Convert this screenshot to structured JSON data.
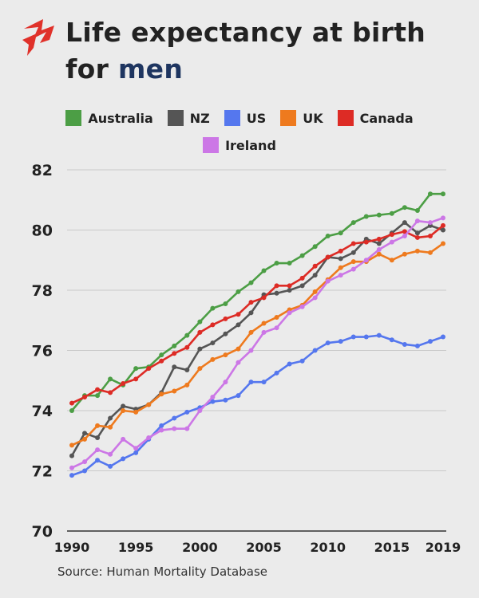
{
  "header": {
    "title_line1": "Life expectancy at birth",
    "title_prefix": "for ",
    "title_highlight": "men"
  },
  "colors": {
    "Australia": "#4c9e45",
    "NZ": "#555555",
    "US": "#5577ee",
    "UK": "#ee7a1e",
    "Canada": "#dd2b25",
    "Ireland": "#cc77e6",
    "title_highlight": "#1e3560",
    "logo": "#e0312a"
  },
  "logo_icon": "sbs-logo-icon",
  "source": "Source: Human Mortality Database",
  "chart_data": {
    "type": "line",
    "title": "Life expectancy at birth for men",
    "xlabel": "",
    "ylabel": "",
    "xlim": [
      1990,
      2019
    ],
    "ylim": [
      70,
      82
    ],
    "x_ticks": [
      1990,
      1995,
      2000,
      2005,
      2010,
      2015,
      2019
    ],
    "y_ticks": [
      70,
      72,
      74,
      76,
      78,
      80,
      82
    ],
    "grid": "horizontal",
    "legend_position": "top",
    "x": [
      1990,
      1991,
      1992,
      1993,
      1994,
      1995,
      1996,
      1997,
      1998,
      1999,
      2000,
      2001,
      2002,
      2003,
      2004,
      2005,
      2006,
      2007,
      2008,
      2009,
      2010,
      2011,
      2012,
      2013,
      2014,
      2015,
      2016,
      2017,
      2018,
      2019
    ],
    "series": [
      {
        "name": "Australia",
        "values": [
          74.0,
          74.5,
          74.5,
          75.05,
          74.85,
          75.4,
          75.45,
          75.85,
          76.15,
          76.5,
          76.95,
          77.4,
          77.55,
          77.95,
          78.25,
          78.65,
          78.9,
          78.9,
          79.15,
          79.45,
          79.8,
          79.9,
          80.25,
          80.45,
          80.5,
          80.55,
          80.75,
          80.65,
          81.2,
          81.2
        ]
      },
      {
        "name": "NZ",
        "values": [
          72.5,
          73.25,
          73.1,
          73.75,
          74.15,
          74.05,
          74.2,
          74.6,
          75.45,
          75.35,
          76.05,
          76.25,
          76.55,
          76.85,
          77.25,
          77.85,
          77.9,
          78.0,
          78.15,
          78.5,
          79.1,
          79.05,
          79.25,
          79.7,
          79.55,
          79.9,
          80.25,
          79.9,
          80.15,
          80.0
        ]
      },
      {
        "name": "US",
        "values": [
          71.85,
          72.0,
          72.35,
          72.15,
          72.4,
          72.6,
          73.05,
          73.5,
          73.75,
          73.95,
          74.1,
          74.3,
          74.35,
          74.5,
          74.95,
          74.95,
          75.25,
          75.55,
          75.65,
          76.0,
          76.25,
          76.3,
          76.45,
          76.45,
          76.5,
          76.35,
          76.2,
          76.15,
          76.3,
          76.45
        ]
      },
      {
        "name": "UK",
        "values": [
          72.85,
          73.05,
          73.5,
          73.45,
          74.0,
          73.95,
          74.2,
          74.55,
          74.65,
          74.85,
          75.4,
          75.7,
          75.85,
          76.05,
          76.6,
          76.9,
          77.1,
          77.35,
          77.5,
          77.95,
          78.35,
          78.75,
          78.95,
          78.95,
          79.2,
          79.0,
          79.2,
          79.3,
          79.25,
          79.55
        ]
      },
      {
        "name": "Canada",
        "values": [
          74.25,
          74.45,
          74.7,
          74.6,
          74.9,
          75.05,
          75.4,
          75.65,
          75.9,
          76.1,
          76.6,
          76.85,
          77.05,
          77.2,
          77.6,
          77.75,
          78.15,
          78.15,
          78.4,
          78.8,
          79.1,
          79.3,
          79.55,
          79.6,
          79.7,
          79.85,
          79.95,
          79.75,
          79.8,
          80.15
        ]
      },
      {
        "name": "Ireland",
        "values": [
          72.1,
          72.3,
          72.7,
          72.55,
          73.05,
          72.75,
          73.1,
          73.35,
          73.4,
          73.4,
          74.0,
          74.45,
          74.95,
          75.6,
          76.0,
          76.6,
          76.75,
          77.25,
          77.45,
          77.75,
          78.3,
          78.5,
          78.7,
          79.0,
          79.35,
          79.6,
          79.8,
          80.3,
          80.25,
          80.4
        ]
      }
    ]
  }
}
